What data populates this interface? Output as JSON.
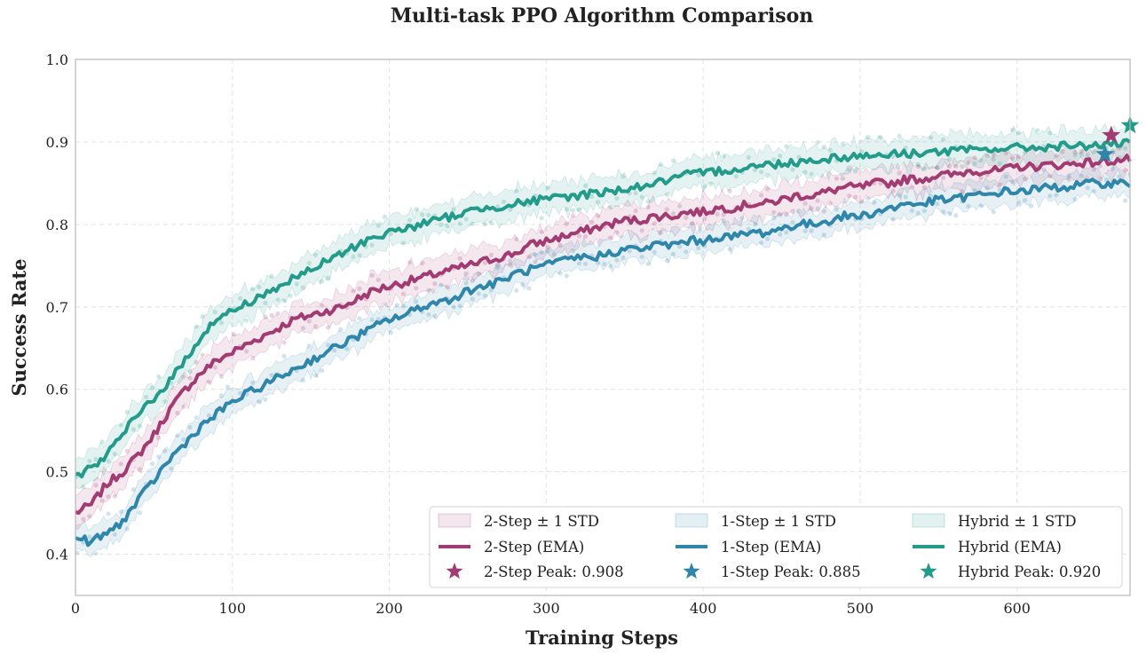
{
  "chart_data": {
    "type": "line",
    "title": "Multi-task PPO Algorithm Comparison",
    "xlabel": "Training Steps",
    "ylabel": "Success Rate",
    "xlim": [
      0,
      672
    ],
    "ylim": [
      0.35,
      1.0
    ],
    "xticks": [
      0,
      100,
      200,
      300,
      400,
      500,
      600
    ],
    "yticks": [
      0.4,
      0.5,
      0.6,
      0.7,
      0.8,
      0.9,
      1.0
    ],
    "grid": true,
    "legend_position": "lower-right",
    "series": [
      {
        "name": "2-Step",
        "color": "#a23b72",
        "band_label": "2-Step ± 1 STD",
        "ema_label": "2-Step (EMA)",
        "peak_label": "2-Step Peak: 0.908",
        "peak": {
          "x": 660,
          "y": 0.908
        },
        "std": 0.018,
        "ema": [
          [
            0,
            0.45
          ],
          [
            10,
            0.46
          ],
          [
            20,
            0.485
          ],
          [
            30,
            0.5
          ],
          [
            40,
            0.52
          ],
          [
            50,
            0.545
          ],
          [
            60,
            0.575
          ],
          [
            70,
            0.6
          ],
          [
            80,
            0.62
          ],
          [
            90,
            0.635
          ],
          [
            100,
            0.645
          ],
          [
            110,
            0.655
          ],
          [
            120,
            0.665
          ],
          [
            130,
            0.675
          ],
          [
            140,
            0.685
          ],
          [
            150,
            0.69
          ],
          [
            160,
            0.695
          ],
          [
            170,
            0.7
          ],
          [
            180,
            0.71
          ],
          [
            190,
            0.72
          ],
          [
            200,
            0.725
          ],
          [
            210,
            0.73
          ],
          [
            220,
            0.735
          ],
          [
            230,
            0.74
          ],
          [
            240,
            0.745
          ],
          [
            250,
            0.75
          ],
          [
            260,
            0.755
          ],
          [
            270,
            0.76
          ],
          [
            280,
            0.765
          ],
          [
            290,
            0.775
          ],
          [
            300,
            0.78
          ],
          [
            310,
            0.785
          ],
          [
            320,
            0.79
          ],
          [
            330,
            0.795
          ],
          [
            340,
            0.8
          ],
          [
            350,
            0.805
          ],
          [
            360,
            0.805
          ],
          [
            370,
            0.81
          ],
          [
            380,
            0.81
          ],
          [
            390,
            0.815
          ],
          [
            400,
            0.815
          ],
          [
            410,
            0.82
          ],
          [
            420,
            0.82
          ],
          [
            430,
            0.825
          ],
          [
            440,
            0.825
          ],
          [
            450,
            0.83
          ],
          [
            460,
            0.835
          ],
          [
            470,
            0.835
          ],
          [
            480,
            0.84
          ],
          [
            490,
            0.845
          ],
          [
            500,
            0.845
          ],
          [
            510,
            0.85
          ],
          [
            520,
            0.85
          ],
          [
            530,
            0.855
          ],
          [
            540,
            0.855
          ],
          [
            550,
            0.86
          ],
          [
            560,
            0.86
          ],
          [
            570,
            0.865
          ],
          [
            580,
            0.865
          ],
          [
            590,
            0.865
          ],
          [
            600,
            0.87
          ],
          [
            610,
            0.87
          ],
          [
            620,
            0.872
          ],
          [
            630,
            0.872
          ],
          [
            640,
            0.875
          ],
          [
            650,
            0.875
          ],
          [
            660,
            0.877
          ],
          [
            672,
            0.879
          ]
        ]
      },
      {
        "name": "1-Step",
        "color": "#2e86ab",
        "band_label": "1-Step ± 1 STD",
        "ema_label": "1-Step (EMA)",
        "peak_label": "1-Step Peak: 0.885",
        "peak": {
          "x": 656,
          "y": 0.885
        },
        "std": 0.016,
        "ema": [
          [
            0,
            0.42
          ],
          [
            10,
            0.415
          ],
          [
            20,
            0.425
          ],
          [
            30,
            0.44
          ],
          [
            40,
            0.465
          ],
          [
            50,
            0.49
          ],
          [
            60,
            0.515
          ],
          [
            70,
            0.535
          ],
          [
            80,
            0.555
          ],
          [
            90,
            0.57
          ],
          [
            100,
            0.585
          ],
          [
            110,
            0.595
          ],
          [
            120,
            0.605
          ],
          [
            130,
            0.615
          ],
          [
            140,
            0.625
          ],
          [
            150,
            0.635
          ],
          [
            160,
            0.645
          ],
          [
            170,
            0.655
          ],
          [
            180,
            0.665
          ],
          [
            190,
            0.675
          ],
          [
            200,
            0.685
          ],
          [
            210,
            0.69
          ],
          [
            220,
            0.7
          ],
          [
            230,
            0.705
          ],
          [
            240,
            0.71
          ],
          [
            250,
            0.72
          ],
          [
            260,
            0.725
          ],
          [
            270,
            0.73
          ],
          [
            280,
            0.74
          ],
          [
            290,
            0.745
          ],
          [
            300,
            0.75
          ],
          [
            310,
            0.755
          ],
          [
            320,
            0.76
          ],
          [
            330,
            0.76
          ],
          [
            340,
            0.765
          ],
          [
            350,
            0.77
          ],
          [
            360,
            0.77
          ],
          [
            370,
            0.775
          ],
          [
            380,
            0.775
          ],
          [
            390,
            0.78
          ],
          [
            400,
            0.78
          ],
          [
            410,
            0.785
          ],
          [
            420,
            0.785
          ],
          [
            430,
            0.79
          ],
          [
            440,
            0.79
          ],
          [
            450,
            0.795
          ],
          [
            460,
            0.8
          ],
          [
            470,
            0.8
          ],
          [
            480,
            0.805
          ],
          [
            490,
            0.81
          ],
          [
            500,
            0.81
          ],
          [
            510,
            0.815
          ],
          [
            520,
            0.82
          ],
          [
            530,
            0.825
          ],
          [
            540,
            0.825
          ],
          [
            550,
            0.83
          ],
          [
            560,
            0.83
          ],
          [
            570,
            0.835
          ],
          [
            580,
            0.835
          ],
          [
            590,
            0.84
          ],
          [
            600,
            0.84
          ],
          [
            610,
            0.842
          ],
          [
            620,
            0.845
          ],
          [
            630,
            0.845
          ],
          [
            640,
            0.848
          ],
          [
            650,
            0.85
          ],
          [
            660,
            0.85
          ],
          [
            672,
            0.85
          ]
        ]
      },
      {
        "name": "Hybrid",
        "color": "#239b8a",
        "band_label": "Hybrid ± 1 STD",
        "ema_label": "Hybrid (EMA)",
        "peak_label": "Hybrid Peak: 0.920",
        "peak": {
          "x": 672,
          "y": 0.92
        },
        "std": 0.018,
        "ema": [
          [
            0,
            0.495
          ],
          [
            10,
            0.505
          ],
          [
            20,
            0.52
          ],
          [
            30,
            0.545
          ],
          [
            40,
            0.57
          ],
          [
            50,
            0.59
          ],
          [
            60,
            0.61
          ],
          [
            70,
            0.635
          ],
          [
            80,
            0.665
          ],
          [
            90,
            0.685
          ],
          [
            100,
            0.695
          ],
          [
            110,
            0.705
          ],
          [
            120,
            0.715
          ],
          [
            130,
            0.725
          ],
          [
            140,
            0.735
          ],
          [
            150,
            0.745
          ],
          [
            160,
            0.755
          ],
          [
            170,
            0.765
          ],
          [
            180,
            0.775
          ],
          [
            190,
            0.785
          ],
          [
            200,
            0.79
          ],
          [
            210,
            0.795
          ],
          [
            220,
            0.8
          ],
          [
            230,
            0.805
          ],
          [
            240,
            0.81
          ],
          [
            250,
            0.815
          ],
          [
            260,
            0.82
          ],
          [
            270,
            0.822
          ],
          [
            280,
            0.825
          ],
          [
            290,
            0.828
          ],
          [
            300,
            0.83
          ],
          [
            310,
            0.833
          ],
          [
            320,
            0.835
          ],
          [
            330,
            0.838
          ],
          [
            340,
            0.84
          ],
          [
            350,
            0.843
          ],
          [
            360,
            0.846
          ],
          [
            370,
            0.85
          ],
          [
            380,
            0.855
          ],
          [
            390,
            0.86
          ],
          [
            400,
            0.862
          ],
          [
            410,
            0.865
          ],
          [
            420,
            0.867
          ],
          [
            430,
            0.87
          ],
          [
            440,
            0.872
          ],
          [
            450,
            0.874
          ],
          [
            460,
            0.876
          ],
          [
            470,
            0.878
          ],
          [
            480,
            0.88
          ],
          [
            490,
            0.882
          ],
          [
            500,
            0.883
          ],
          [
            510,
            0.884
          ],
          [
            520,
            0.885
          ],
          [
            530,
            0.886
          ],
          [
            540,
            0.887
          ],
          [
            550,
            0.888
          ],
          [
            560,
            0.889
          ],
          [
            570,
            0.89
          ],
          [
            580,
            0.891
          ],
          [
            590,
            0.892
          ],
          [
            600,
            0.893
          ],
          [
            610,
            0.893
          ],
          [
            620,
            0.894
          ],
          [
            630,
            0.895
          ],
          [
            640,
            0.895
          ],
          [
            650,
            0.896
          ],
          [
            660,
            0.897
          ],
          [
            672,
            0.898
          ]
        ]
      }
    ]
  }
}
